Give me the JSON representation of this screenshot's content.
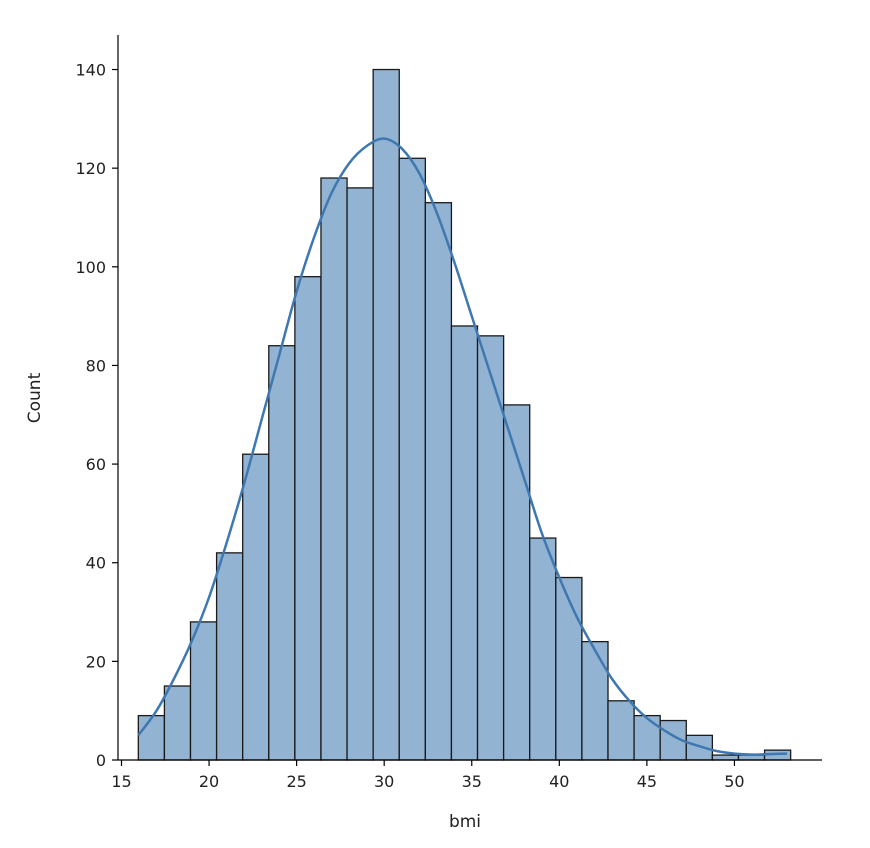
{
  "chart_data": {
    "type": "bar",
    "subtype": "histogram",
    "title": "",
    "xlabel": "bmi",
    "ylabel": "Count",
    "xlim": [
      14.8,
      55.0
    ],
    "ylim": [
      0,
      147
    ],
    "xticks": [
      15,
      20,
      25,
      30,
      35,
      40,
      45,
      50
    ],
    "yticks": [
      0,
      20,
      40,
      60,
      80,
      100,
      120,
      140
    ],
    "bins": [
      {
        "start": 15.96,
        "end": 17.45,
        "count": 9
      },
      {
        "start": 17.45,
        "end": 18.94,
        "count": 15
      },
      {
        "start": 18.94,
        "end": 20.43,
        "count": 28
      },
      {
        "start": 20.43,
        "end": 21.92,
        "count": 42
      },
      {
        "start": 21.92,
        "end": 23.41,
        "count": 62
      },
      {
        "start": 23.41,
        "end": 24.9,
        "count": 84
      },
      {
        "start": 24.9,
        "end": 26.39,
        "count": 98
      },
      {
        "start": 26.39,
        "end": 27.88,
        "count": 118
      },
      {
        "start": 27.88,
        "end": 29.37,
        "count": 116
      },
      {
        "start": 29.37,
        "end": 30.86,
        "count": 140
      },
      {
        "start": 30.86,
        "end": 32.35,
        "count": 122
      },
      {
        "start": 32.35,
        "end": 33.84,
        "count": 113
      },
      {
        "start": 33.84,
        "end": 35.33,
        "count": 88
      },
      {
        "start": 35.33,
        "end": 36.82,
        "count": 86
      },
      {
        "start": 36.82,
        "end": 38.31,
        "count": 72
      },
      {
        "start": 38.31,
        "end": 39.8,
        "count": 45
      },
      {
        "start": 39.8,
        "end": 41.29,
        "count": 37
      },
      {
        "start": 41.29,
        "end": 42.78,
        "count": 24
      },
      {
        "start": 42.78,
        "end": 44.27,
        "count": 12
      },
      {
        "start": 44.27,
        "end": 45.76,
        "count": 9
      },
      {
        "start": 45.76,
        "end": 47.25,
        "count": 8
      },
      {
        "start": 47.25,
        "end": 48.74,
        "count": 5
      },
      {
        "start": 48.74,
        "end": 50.23,
        "count": 1
      },
      {
        "start": 50.23,
        "end": 51.72,
        "count": 1
      },
      {
        "start": 51.72,
        "end": 53.21,
        "count": 2
      }
    ],
    "kde": [
      [
        15.96,
        5
      ],
      [
        17,
        10
      ],
      [
        18,
        16.5
      ],
      [
        19,
        24
      ],
      [
        20,
        33
      ],
      [
        21,
        44
      ],
      [
        22,
        56
      ],
      [
        23,
        69
      ],
      [
        24,
        82
      ],
      [
        25,
        95
      ],
      [
        26,
        106
      ],
      [
        27,
        115
      ],
      [
        28,
        121
      ],
      [
        29,
        124.5
      ],
      [
        30,
        126
      ],
      [
        31,
        124
      ],
      [
        32,
        119
      ],
      [
        33,
        111
      ],
      [
        34,
        101
      ],
      [
        35,
        90
      ],
      [
        36,
        79
      ],
      [
        37,
        68
      ],
      [
        38,
        57
      ],
      [
        39,
        46
      ],
      [
        40,
        37
      ],
      [
        41,
        29
      ],
      [
        42,
        22.5
      ],
      [
        43,
        16.5
      ],
      [
        44,
        12
      ],
      [
        45,
        8.5
      ],
      [
        46,
        6
      ],
      [
        47,
        4
      ],
      [
        48,
        2.8
      ],
      [
        49,
        1.8
      ],
      [
        50,
        1.3
      ],
      [
        51,
        1.1
      ],
      [
        52,
        1.2
      ],
      [
        53,
        1.3
      ]
    ],
    "colors": {
      "bar_fill": "#93b3d3",
      "bar_edge": "#1a1a1a",
      "kde_line": "#3f78b0",
      "axis": "#000000",
      "text": "#222222"
    },
    "grid": false,
    "legend": "none"
  }
}
